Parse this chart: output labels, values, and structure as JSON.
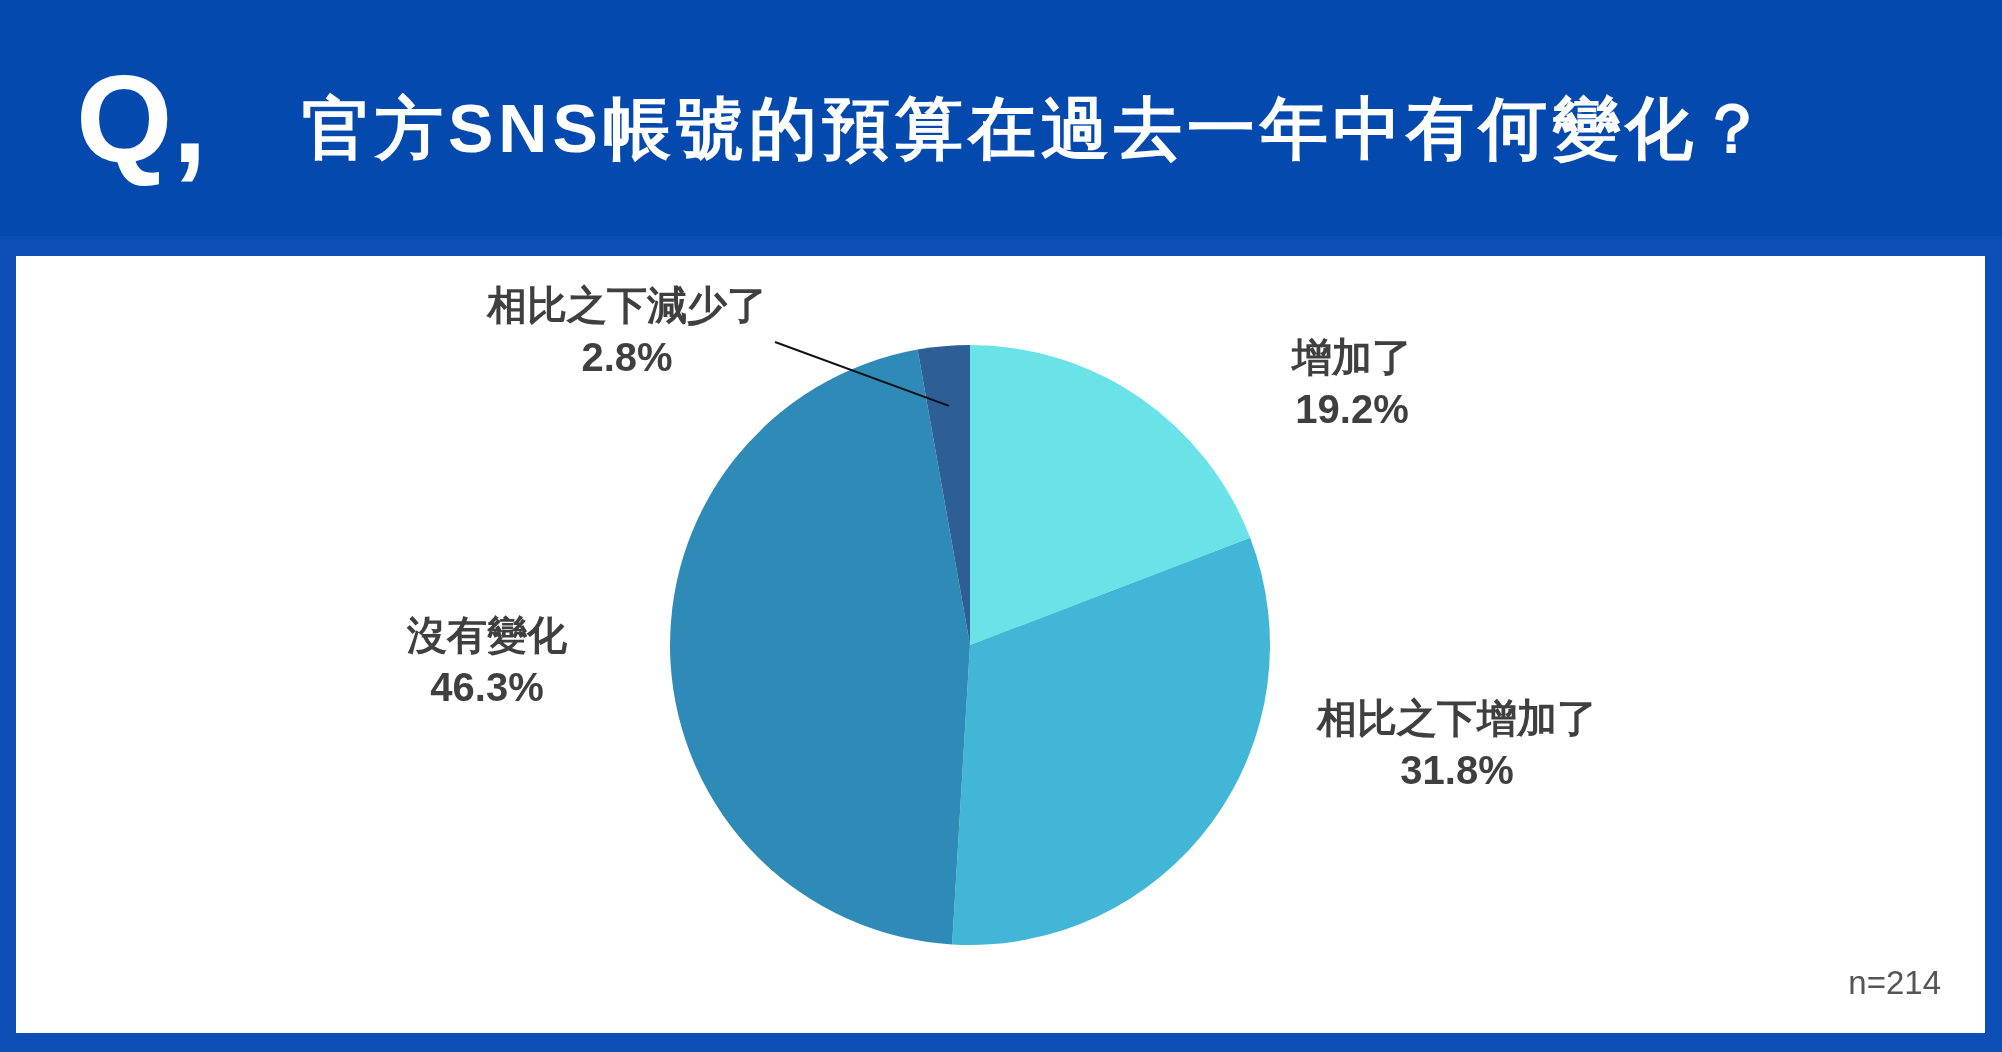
{
  "chart_data": {
    "type": "pie",
    "title": "官方SNS帳號的預算在過去一年中有何變化？",
    "categories": [
      "增加了",
      "相比之下增加了",
      "沒有變化",
      "相比之下減少了"
    ],
    "values": [
      19.2,
      31.8,
      46.3,
      2.8
    ],
    "colors": [
      "#6ae3e8",
      "#42b6d6",
      "#2e8bb8",
      "#2d5e96"
    ],
    "value_labels": [
      "19.2%",
      "31.8%",
      "46.3%",
      "2.8%"
    ],
    "annotations": [
      "Q,",
      "n=214"
    ]
  }
}
